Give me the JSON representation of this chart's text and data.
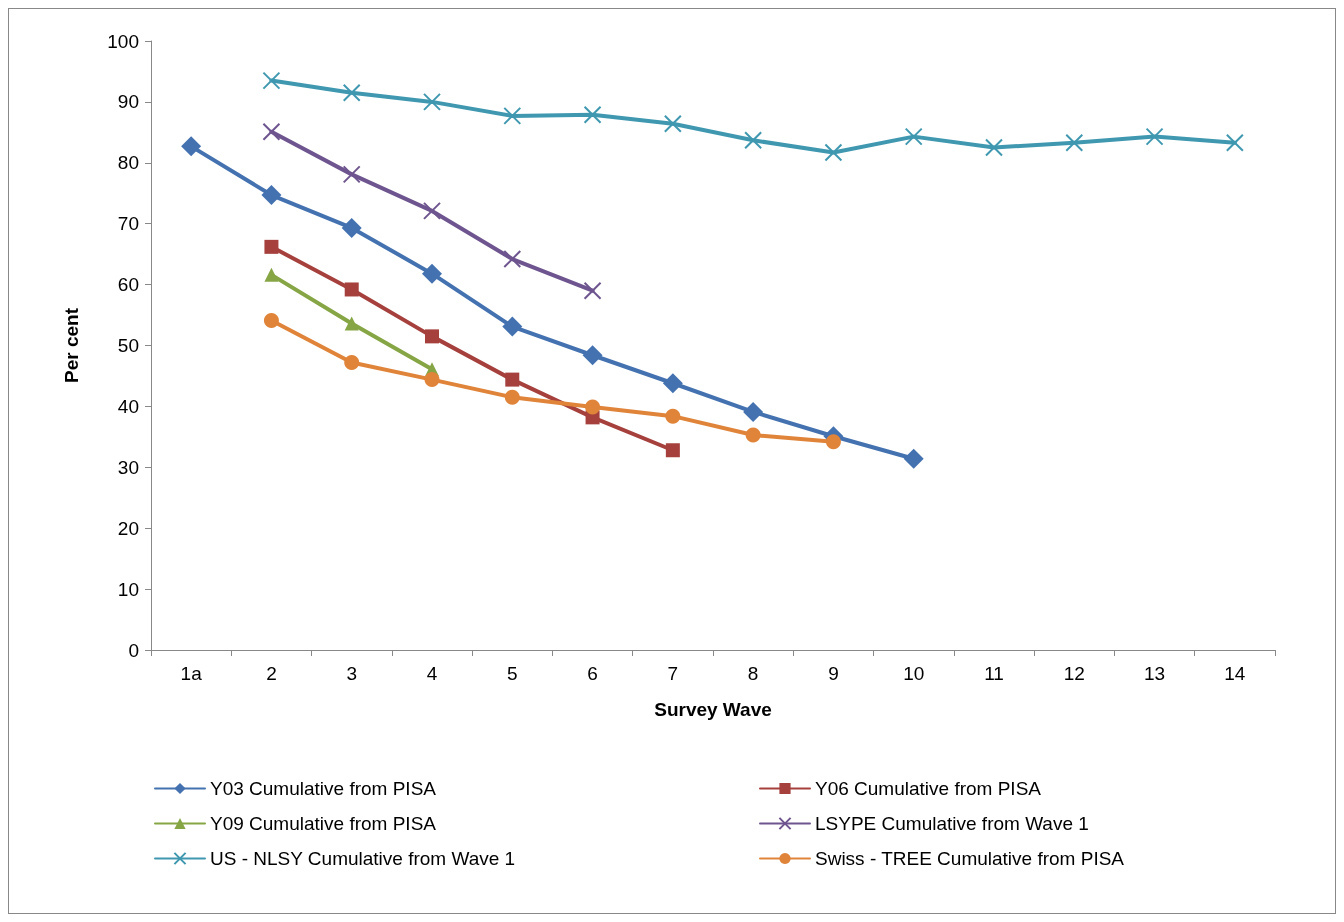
{
  "chart_data": {
    "type": "line",
    "xlabel": "Survey Wave",
    "ylabel": "Per cent",
    "categories": [
      "1a",
      "2",
      "3",
      "4",
      "5",
      "6",
      "7",
      "8",
      "9",
      "10",
      "11",
      "12",
      "13",
      "14"
    ],
    "ylim": [
      0,
      100
    ],
    "yticks": [
      0,
      10,
      20,
      30,
      40,
      50,
      60,
      70,
      80,
      90,
      100
    ],
    "grid": false,
    "legend": "bottom",
    "series": [
      {
        "name": "Y03 Cumulative from PISA",
        "color": "#4472b0",
        "marker": "diamond",
        "values": [
          82.7,
          74.7,
          69.3,
          61.8,
          53.1,
          48.4,
          43.8,
          39.1,
          35.1,
          31.4,
          null,
          null,
          null,
          null
        ]
      },
      {
        "name": "Y06 Cumulative from PISA",
        "color": "#a5403d",
        "marker": "square",
        "values": [
          null,
          66.2,
          59.2,
          51.5,
          44.4,
          38.2,
          32.8,
          null,
          null,
          null,
          null,
          null,
          null,
          null
        ]
      },
      {
        "name": "Y09 Cumulative from PISA",
        "color": "#86a544",
        "marker": "triangle",
        "values": [
          null,
          61.6,
          53.6,
          46.1,
          null,
          null,
          null,
          null,
          null,
          null,
          null,
          null,
          null,
          null
        ]
      },
      {
        "name": "LSYPE Cumulative from Wave 1",
        "color": "#6e558f",
        "marker": "cross",
        "values": [
          null,
          85.1,
          78.1,
          72.1,
          64.2,
          59.0,
          null,
          null,
          null,
          null,
          null,
          null,
          null,
          null
        ]
      },
      {
        "name": "US - NLSY Cumulative from Wave 1",
        "color": "#3f98b0",
        "marker": "cross",
        "values": [
          null,
          93.5,
          91.5,
          90.0,
          87.7,
          87.9,
          86.4,
          83.7,
          81.7,
          84.3,
          82.5,
          83.3,
          84.3,
          83.3
        ]
      },
      {
        "name": "Swiss - TREE Cumulative from PISA",
        "color": "#e0843a",
        "marker": "circle",
        "values": [
          null,
          54.1,
          47.2,
          44.4,
          41.5,
          39.9,
          38.4,
          35.3,
          34.2,
          null,
          null,
          null,
          null,
          null
        ]
      }
    ]
  }
}
